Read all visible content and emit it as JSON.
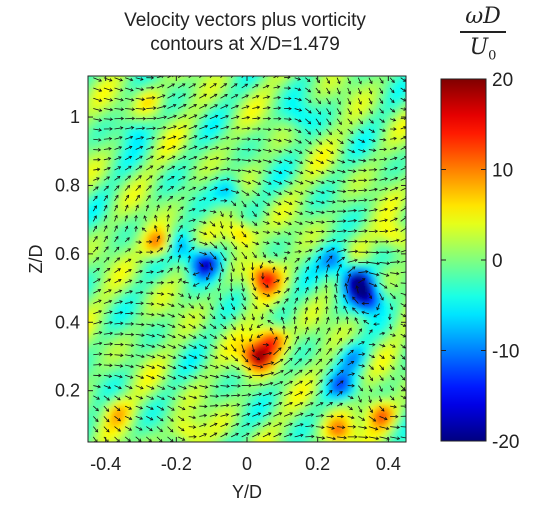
{
  "chart_data": {
    "type": "heatmap",
    "title": [
      "Velocity vectors plus vorticity",
      "contours at X/D=1.479"
    ],
    "xlabel": "Y/D",
    "ylabel": "Z/D",
    "xlim": [
      -0.45,
      0.45
    ],
    "ylim": [
      0.05,
      1.12
    ],
    "xticks": [
      -0.4,
      -0.2,
      0,
      0.2,
      0.4
    ],
    "yticks": [
      0.2,
      0.4,
      0.6,
      0.8,
      1
    ],
    "xtick_labels": [
      "-0.4",
      "-0.2",
      "0",
      "0.2",
      "0.4"
    ],
    "ytick_labels": [
      "0.2",
      "0.4",
      "0.6",
      "0.8",
      "1"
    ],
    "colorbar": {
      "label_numerator": "ωD",
      "label_denominator": "U",
      "label_denominator_sub": "0",
      "range": [
        -20,
        20
      ],
      "ticks": [
        20,
        10,
        0,
        -10,
        -20
      ],
      "tick_labels": [
        "20",
        "10",
        "0",
        "-10",
        "-20"
      ],
      "colormap": "jet"
    },
    "vortices": [
      {
        "y": 0.31,
        "z": 0.52,
        "value": -20
      },
      {
        "y": 0.34,
        "z": 0.47,
        "value": -16
      },
      {
        "y": 0.25,
        "z": 0.58,
        "value": -10
      },
      {
        "y": -0.12,
        "z": 0.57,
        "value": -18
      },
      {
        "y": -0.18,
        "z": 0.62,
        "value": -8
      },
      {
        "y": 0.03,
        "z": 0.3,
        "value": 19
      },
      {
        "y": 0.07,
        "z": 0.35,
        "value": 15
      },
      {
        "y": 0.05,
        "z": 0.53,
        "value": 14
      },
      {
        "y": -0.02,
        "z": 0.66,
        "value": 11
      },
      {
        "y": -0.25,
        "z": 0.63,
        "value": 12
      },
      {
        "y": 0.38,
        "z": 0.13,
        "value": 12
      },
      {
        "y": 0.26,
        "z": 0.08,
        "value": 10
      },
      {
        "y": -0.17,
        "z": 0.08,
        "value": 7
      },
      {
        "y": 0.42,
        "z": 0.65,
        "value": 9
      },
      {
        "y": -0.05,
        "z": 0.78,
        "value": -9
      },
      {
        "y": 0.27,
        "z": 0.21,
        "value": -9
      },
      {
        "y": 0.3,
        "z": 0.3,
        "value": -7
      },
      {
        "y": -0.37,
        "z": 0.14,
        "value": 6
      },
      {
        "y": -0.32,
        "z": 0.96,
        "value": -5
      },
      {
        "y": 0.15,
        "z": 1.0,
        "value": -5
      },
      {
        "y": -0.28,
        "z": 1.05,
        "value": 6
      }
    ],
    "vector_field": {
      "grid_step": 0.03,
      "description_source": "velocity vectors"
    }
  }
}
